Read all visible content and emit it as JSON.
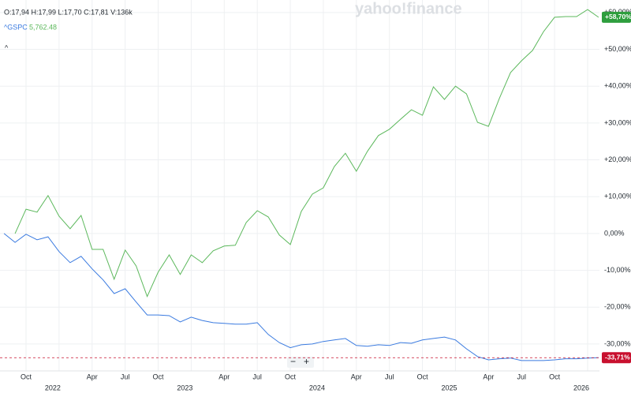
{
  "header": {
    "ohlc": "O:17,94  H:17,99  L:17,70  C:17,81  V:136k",
    "logo": "yahoo!finance",
    "collapse": "^",
    "zoom_out": "−",
    "zoom_in": "+"
  },
  "chart_data": {
    "type": "line",
    "categories": [
      null,
      null,
      "Oct",
      null,
      null,
      "2022",
      null,
      null,
      "Apr",
      null,
      null,
      "Jul",
      null,
      null,
      "Oct",
      null,
      null,
      "2023",
      null,
      null,
      "Apr",
      null,
      null,
      "Jul",
      null,
      null,
      "Oct",
      null,
      null,
      "2024",
      null,
      null,
      "Apr",
      null,
      null,
      "Jul",
      null,
      null,
      "Oct",
      null,
      null,
      "2025",
      null,
      null,
      "Apr",
      null,
      null,
      "Jul",
      null,
      null,
      "Oct",
      null,
      null,
      "2026",
      null
    ],
    "series": [
      {
        "color": "#3b7be0",
        "values": [
          0,
          -2.4,
          -0.2,
          -1.7,
          -0.9,
          -4.9,
          -7.9,
          -6.2,
          -9.6,
          -12.6,
          -16.3,
          -15.0,
          -18.6,
          -22.1,
          -22.1,
          -22.3,
          -24.0,
          -22.7,
          -23.6,
          -24.2,
          -24.4,
          -24.6,
          -24.6,
          -24.2,
          -27.4,
          -29.6,
          -31.0,
          -30.2,
          -30.0,
          -29.3,
          -28.9,
          -28.5,
          -30.4,
          -30.6,
          -30.2,
          -30.4,
          -29.6,
          -29.8,
          -28.9,
          -28.5,
          -28.1,
          -28.9,
          -31.3,
          -33.4,
          -34.3,
          -34.0,
          -33.8,
          -34.5,
          -34.5,
          -34.5,
          -34.3,
          -34.0,
          -34.0,
          -33.8,
          -33.71
        ],
        "value_labels": [
          null,
          null,
          null,
          null,
          null,
          null,
          null,
          null,
          null,
          null,
          null,
          null,
          null,
          null,
          null,
          null,
          null,
          null,
          null,
          null,
          null,
          null,
          null,
          null,
          null,
          null,
          null,
          null,
          null,
          null,
          null,
          null,
          null,
          null,
          null,
          null,
          null,
          null,
          null,
          null,
          null,
          null,
          null,
          null,
          null,
          null,
          null,
          null,
          null,
          null,
          null,
          null,
          null,
          null,
          "-33,71%"
        ],
        "badge_color": "#c8102e"
      },
      {
        "name": "^GSPC",
        "legend_value": "5,762.48",
        "color": "#5cb85c",
        "values": [
          null,
          0,
          6.6,
          5.8,
          10.3,
          4.7,
          1.3,
          4.9,
          -4.3,
          -4.3,
          -12.4,
          -4.5,
          -8.8,
          -17.1,
          -10.5,
          -5.8,
          -11.1,
          -5.8,
          -7.9,
          -4.7,
          -3.4,
          -3.2,
          3.0,
          6.2,
          4.5,
          -0.4,
          -3.0,
          6.0,
          10.7,
          12.4,
          18.2,
          21.8,
          16.9,
          22.3,
          26.6,
          28.3,
          31.0,
          33.6,
          32.1,
          39.8,
          36.4,
          40.0,
          37.9,
          30.2,
          29.1,
          36.8,
          43.7,
          46.9,
          49.7,
          54.8,
          58.7,
          58.9,
          58.9,
          60.8,
          58.7
        ],
        "value_labels": [
          null,
          null,
          null,
          null,
          null,
          null,
          null,
          null,
          null,
          null,
          null,
          null,
          null,
          null,
          null,
          null,
          null,
          null,
          null,
          null,
          null,
          null,
          null,
          null,
          null,
          null,
          null,
          null,
          null,
          null,
          null,
          null,
          null,
          null,
          null,
          null,
          null,
          null,
          null,
          null,
          null,
          null,
          null,
          null,
          null,
          null,
          null,
          null,
          null,
          null,
          null,
          null,
          null,
          null,
          "+58,70%"
        ],
        "badge_color": "#2e9e3e"
      }
    ],
    "ylim": [
      -37.3,
      63.4
    ],
    "yticks": [
      {
        "value": -30,
        "label": "-30,00%"
      },
      {
        "value": -20,
        "label": "-20,00%"
      },
      {
        "value": -10,
        "label": "-10,00%"
      },
      {
        "value": 0,
        "label": "0,00%"
      },
      {
        "value": 10,
        "label": "+10,00%"
      },
      {
        "value": 20,
        "label": "+20,00%"
      },
      {
        "value": 30,
        "label": "+30,00%"
      },
      {
        "value": 40,
        "label": "+40,00%"
      },
      {
        "value": 50,
        "label": "+50,00%"
      },
      {
        "value": 60,
        "label": "+60,00%"
      }
    ],
    "grid": true
  }
}
